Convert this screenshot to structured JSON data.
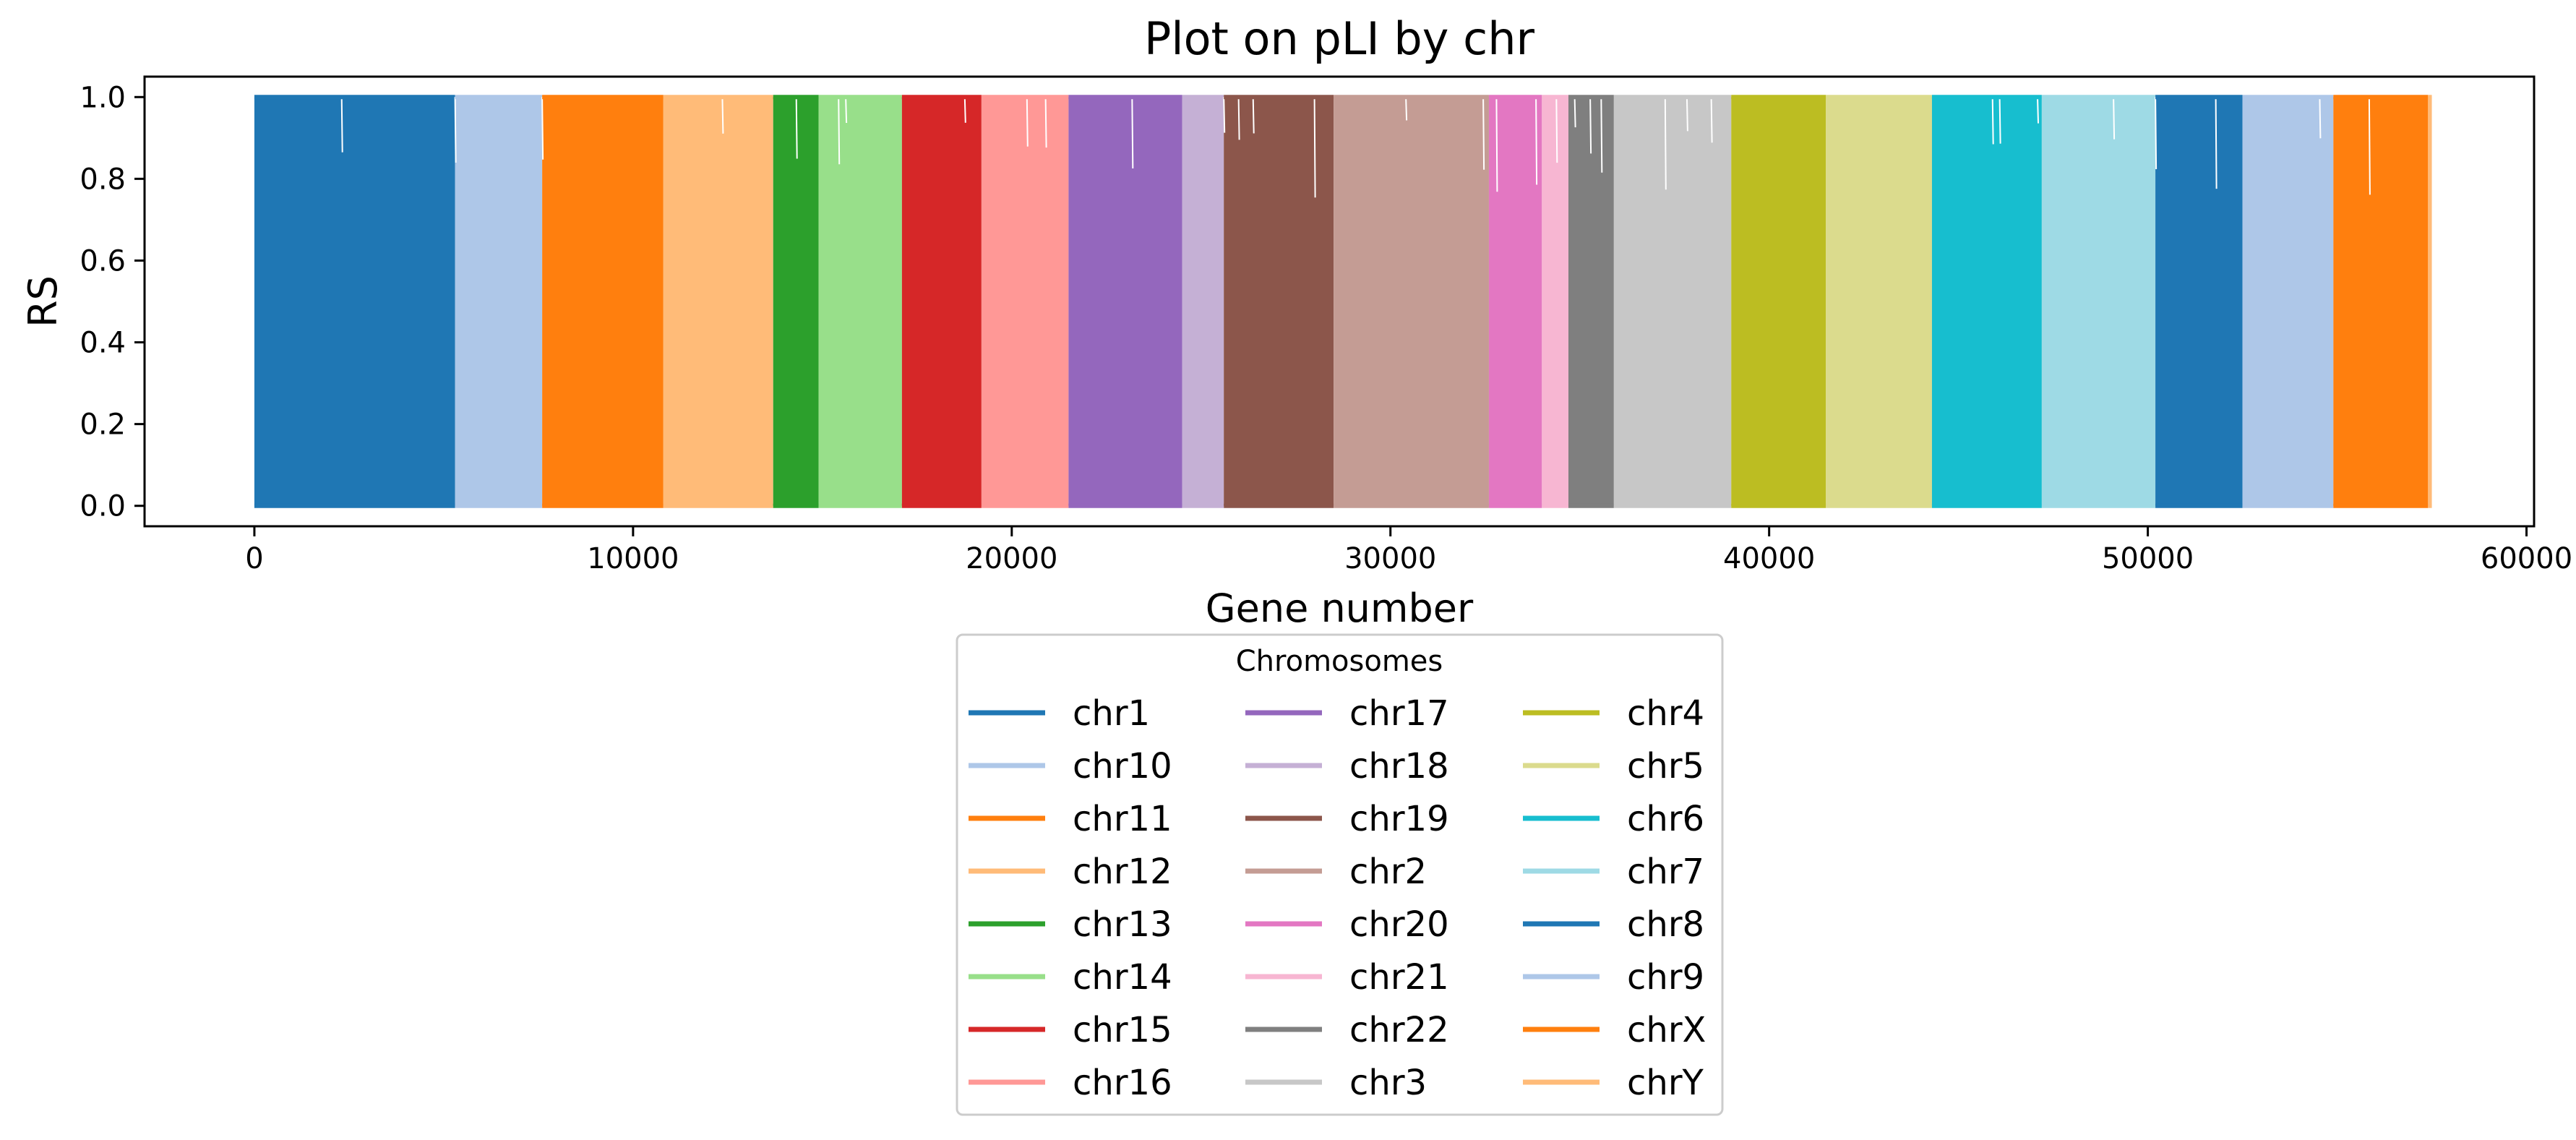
{
  "chart_data": {
    "type": "line",
    "title": "Plot on pLI by chr",
    "xlabel": "Gene number",
    "ylabel": "RS",
    "xlim": [
      -2900,
      60200
    ],
    "ylim": [
      -0.05,
      1.05
    ],
    "x_ticks": [
      0,
      10000,
      20000,
      30000,
      40000,
      50000,
      60000
    ],
    "x_tick_labels": [
      "0",
      "10000",
      "20000",
      "30000",
      "40000",
      "50000",
      "60000"
    ],
    "y_ticks": [
      0.0,
      0.2,
      0.4,
      0.6,
      0.8,
      1.0
    ],
    "y_tick_labels": [
      "0.0",
      "0.2",
      "0.4",
      "0.6",
      "0.8",
      "1.0"
    ],
    "grid": false,
    "legend": {
      "title": "Chromosomes",
      "placement": "below-center",
      "columns": 3
    },
    "series": [
      {
        "name": "chr1",
        "color": "#1f77b4",
        "x_range": [
          0,
          5300
        ]
      },
      {
        "name": "chr10",
        "color": "#aec7e8",
        "x_range": [
          5300,
          7600
        ]
      },
      {
        "name": "chr11",
        "color": "#ff7f0e",
        "x_range": [
          7600,
          10800
        ]
      },
      {
        "name": "chr12",
        "color": "#ffbb78",
        "x_range": [
          10800,
          13700
        ]
      },
      {
        "name": "chr13",
        "color": "#2ca02c",
        "x_range": [
          13700,
          14900
        ]
      },
      {
        "name": "chr14",
        "color": "#98df8a",
        "x_range": [
          14900,
          17100
        ]
      },
      {
        "name": "chr15",
        "color": "#d62728",
        "x_range": [
          17100,
          19200
        ]
      },
      {
        "name": "chr16",
        "color": "#ff9896",
        "x_range": [
          19200,
          21500
        ]
      },
      {
        "name": "chr17",
        "color": "#9467bd",
        "x_range": [
          21500,
          24500
        ]
      },
      {
        "name": "chr18",
        "color": "#c5b0d5",
        "x_range": [
          24500,
          25600
        ]
      },
      {
        "name": "chr19",
        "color": "#8c564b",
        "x_range": [
          25600,
          28500
        ]
      },
      {
        "name": "chr2",
        "color": "#c49c94",
        "x_range": [
          28500,
          32600
        ]
      },
      {
        "name": "chr20",
        "color": "#e377c2",
        "x_range": [
          32600,
          34000
        ]
      },
      {
        "name": "chr21",
        "color": "#f7b6d2",
        "x_range": [
          34000,
          34700
        ]
      },
      {
        "name": "chr22",
        "color": "#7f7f7f",
        "x_range": [
          34700,
          35900
        ]
      },
      {
        "name": "chr3",
        "color": "#c7c7c7",
        "x_range": [
          35900,
          39000
        ]
      },
      {
        "name": "chr4",
        "color": "#bcbd22",
        "x_range": [
          39000,
          41500
        ]
      },
      {
        "name": "chr5",
        "color": "#dbdb8d",
        "x_range": [
          41500,
          44300
        ]
      },
      {
        "name": "chr6",
        "color": "#17becf",
        "x_range": [
          44300,
          47200
        ]
      },
      {
        "name": "chr7",
        "color": "#9edae5",
        "x_range": [
          47200,
          50200
        ]
      },
      {
        "name": "chr8",
        "color": "#1f77b4",
        "x_range": [
          50200,
          52500
        ]
      },
      {
        "name": "chr9",
        "color": "#aec7e8",
        "x_range": [
          52500,
          54900
        ]
      },
      {
        "name": "chrX",
        "color": "#ff7f0e",
        "x_range": [
          54900,
          57400
        ]
      },
      {
        "name": "chrY",
        "color": "#ffbb78",
        "x_range": [
          57400,
          57500
        ]
      }
    ]
  }
}
